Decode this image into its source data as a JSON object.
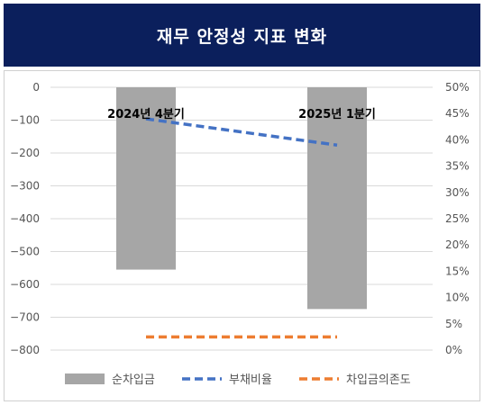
{
  "title": "재무 안정성 지표 변화",
  "chart_data": {
    "type": "bar",
    "title": "재무 안정성 지표 변화",
    "categories": [
      "2024년 4분기",
      "2025년 1분기"
    ],
    "series": [
      {
        "name": "순차입금",
        "type": "bar",
        "axis": "left",
        "color": "#a6a6a6",
        "values": [
          -555,
          -675
        ]
      },
      {
        "name": "부채비율",
        "type": "line",
        "style": "dashed",
        "axis": "right",
        "color": "#4472c4",
        "values": [
          44,
          39
        ]
      },
      {
        "name": "차입금의존도",
        "type": "line",
        "style": "dashed",
        "axis": "right",
        "color": "#ed7d31",
        "values": [
          2.5,
          2.5
        ]
      }
    ],
    "y_left": {
      "min": -800,
      "max": 0,
      "ticks": [
        "0",
        "-100",
        "-200",
        "-300",
        "-400",
        "-500",
        "-600",
        "-700",
        "-800"
      ]
    },
    "y_right": {
      "min": 0,
      "max": 50,
      "ticks": [
        "50%",
        "45%",
        "40%",
        "35%",
        "30%",
        "25%",
        "20%",
        "15%",
        "10%",
        "5%",
        "0%"
      ]
    },
    "grid": true,
    "legend_position": "bottom"
  }
}
